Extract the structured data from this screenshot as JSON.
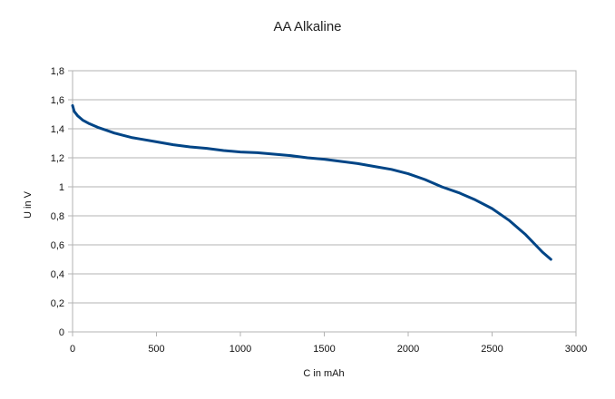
{
  "chart_data": {
    "type": "line",
    "title": "AA Alkaline",
    "xlabel": "C in mAh",
    "ylabel": "U in V",
    "xlim": [
      0,
      3000
    ],
    "ylim": [
      0,
      1.8
    ],
    "x_ticks": [
      0,
      500,
      1000,
      1500,
      2000,
      2500,
      3000
    ],
    "y_ticks": [
      0,
      0.2,
      0.4,
      0.6,
      0.8,
      1,
      1.2,
      1.4,
      1.6,
      1.8
    ],
    "x_tick_labels": [
      "0",
      "500",
      "1000",
      "1500",
      "2000",
      "2500",
      "3000"
    ],
    "y_tick_labels": [
      "0",
      "0,2",
      "0,4",
      "0,6",
      "0,8",
      "1",
      "1,2",
      "1,4",
      "1,6",
      "1,8"
    ],
    "grid": "horizontal",
    "legend": "none",
    "line_color": "#004586",
    "series": [
      {
        "x": [
          0,
          10,
          30,
          60,
          100,
          150,
          200,
          250,
          300,
          350,
          400,
          500,
          600,
          700,
          800,
          900,
          1000,
          1100,
          1200,
          1300,
          1400,
          1500,
          1600,
          1700,
          1800,
          1900,
          2000,
          2100,
          2200,
          2300,
          2400,
          2500,
          2600,
          2700,
          2800,
          2850
        ],
        "y": [
          1.56,
          1.52,
          1.49,
          1.46,
          1.435,
          1.41,
          1.39,
          1.37,
          1.355,
          1.34,
          1.33,
          1.31,
          1.29,
          1.275,
          1.265,
          1.25,
          1.24,
          1.235,
          1.225,
          1.215,
          1.2,
          1.19,
          1.175,
          1.16,
          1.14,
          1.12,
          1.09,
          1.05,
          1.0,
          0.96,
          0.91,
          0.85,
          0.77,
          0.67,
          0.55,
          0.5
        ]
      }
    ]
  }
}
